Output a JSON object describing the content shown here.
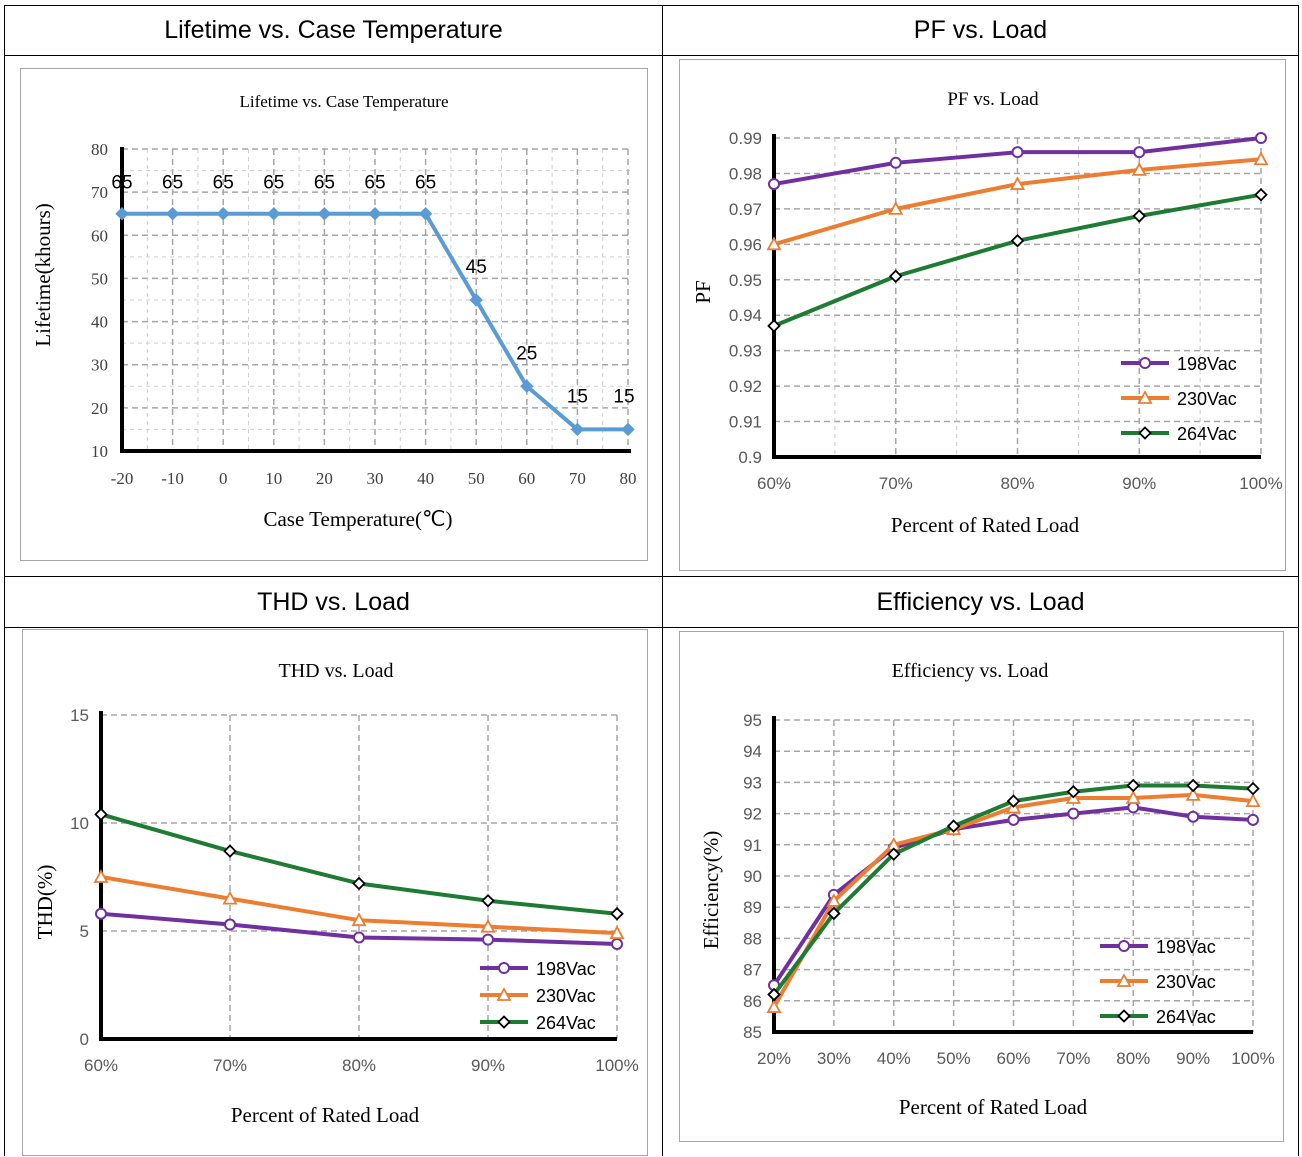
{
  "headers": {
    "lifetime": "Lifetime vs. Case Temperature",
    "pf": "PF vs. Load",
    "thd": "THD vs. Load",
    "eff": "Efficiency vs. Load"
  },
  "colors": {
    "198Vac": "#7030a0",
    "230Vac": "#ed7d31",
    "264Vac": "#1e7b34",
    "lifetime": "#5b9bd5"
  },
  "chart_data": [
    {
      "id": "lifetime",
      "type": "line",
      "title": "Lifetime vs. Case Temperature",
      "xlabel": "Case Temperature(℃)",
      "ylabel": "Lifetime(khours)",
      "x": [
        -20,
        -10,
        0,
        10,
        20,
        30,
        40,
        50,
        60,
        70,
        80
      ],
      "x_tick_labels": [
        "-20",
        "-10",
        "0",
        "10",
        "20",
        "30",
        "40",
        "50",
        "60",
        "70",
        "80"
      ],
      "y_ticks": [
        "10",
        "20",
        "30",
        "40",
        "50",
        "60",
        "70",
        "80"
      ],
      "ylim": [
        10,
        80
      ],
      "xlim": [
        -20,
        80
      ],
      "series": [
        {
          "values": [
            65,
            65,
            65,
            65,
            65,
            65,
            65,
            45,
            25,
            15,
            15
          ],
          "labels": [
            "65",
            "65",
            "65",
            "65",
            "65",
            "65",
            "65",
            "45",
            "25",
            "15",
            "15"
          ]
        }
      ],
      "grid": true
    },
    {
      "id": "pf",
      "type": "line",
      "title": "PF vs. Load",
      "xlabel": "Percent of Rated Load",
      "ylabel": "PF",
      "categories": [
        "60%",
        "70%",
        "80%",
        "90%",
        "100%"
      ],
      "y_ticks": [
        "0.9",
        "0.91",
        "0.92",
        "0.93",
        "0.94",
        "0.95",
        "0.96",
        "0.97",
        "0.98",
        "0.99"
      ],
      "ylim": [
        0.9,
        0.99
      ],
      "legend": "bottom-right",
      "series": [
        {
          "name": "198Vac",
          "values": [
            0.977,
            0.983,
            0.986,
            0.986,
            0.99
          ]
        },
        {
          "name": "230Vac",
          "values": [
            0.96,
            0.97,
            0.977,
            0.981,
            0.984
          ]
        },
        {
          "name": "264Vac",
          "values": [
            0.937,
            0.951,
            0.961,
            0.968,
            0.974
          ]
        }
      ],
      "grid": true
    },
    {
      "id": "thd",
      "type": "line",
      "title": "THD vs. Load",
      "xlabel": "Percent of Rated Load",
      "ylabel": "THD(%)",
      "categories": [
        "60%",
        "70%",
        "80%",
        "90%",
        "100%"
      ],
      "y_ticks": [
        "0",
        "5",
        "10",
        "15"
      ],
      "ylim": [
        0,
        15
      ],
      "legend": "bottom-right",
      "series": [
        {
          "name": "198Vac",
          "values": [
            5.8,
            5.3,
            4.7,
            4.6,
            4.4
          ]
        },
        {
          "name": "230Vac",
          "values": [
            7.5,
            6.5,
            5.5,
            5.2,
            4.9
          ]
        },
        {
          "name": "264Vac",
          "values": [
            10.4,
            8.7,
            7.2,
            6.4,
            5.8
          ]
        }
      ],
      "grid": true
    },
    {
      "id": "eff",
      "type": "line",
      "title": "Efficiency vs. Load",
      "xlabel": "Percent of Rated Load",
      "ylabel": "Efficiency(%)",
      "categories": [
        "20%",
        "30%",
        "40%",
        "50%",
        "60%",
        "70%",
        "80%",
        "90%",
        "100%"
      ],
      "y_ticks": [
        "85",
        "86",
        "87",
        "88",
        "89",
        "90",
        "91",
        "92",
        "93",
        "94",
        "95"
      ],
      "ylim": [
        85,
        95
      ],
      "legend": "bottom-right",
      "series": [
        {
          "name": "198Vac",
          "values": [
            86.5,
            89.4,
            90.9,
            91.5,
            91.8,
            92.0,
            92.2,
            91.9,
            91.8
          ]
        },
        {
          "name": "230Vac",
          "values": [
            85.8,
            89.2,
            91.0,
            91.5,
            92.2,
            92.5,
            92.5,
            92.6,
            92.4
          ]
        },
        {
          "name": "264Vac",
          "values": [
            86.2,
            88.8,
            90.7,
            91.6,
            92.4,
            92.7,
            92.9,
            92.9,
            92.8
          ]
        }
      ],
      "grid": true
    }
  ]
}
